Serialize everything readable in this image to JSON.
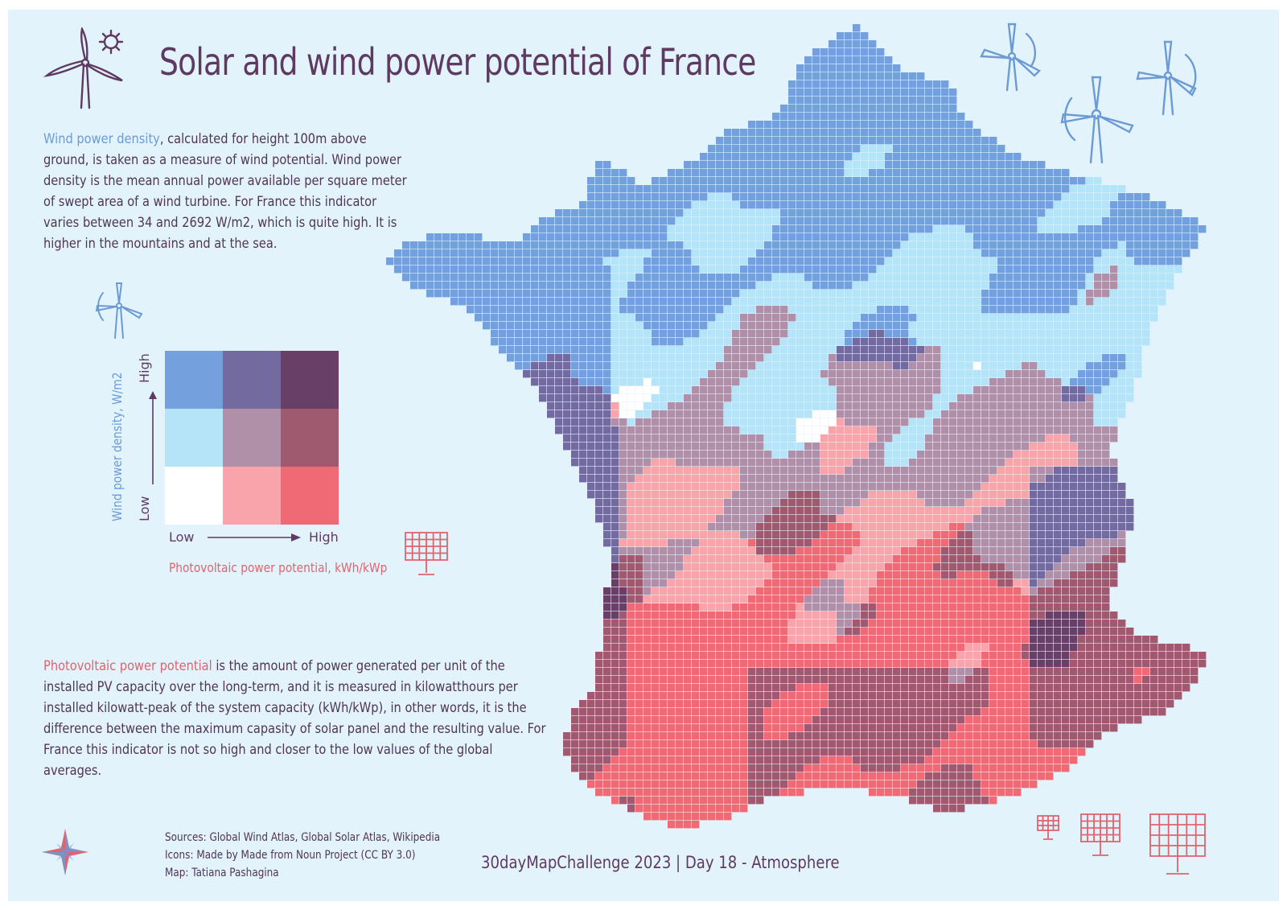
{
  "title": "Solar and wind power potential of France",
  "wind_text": {
    "highlight": "Wind power density",
    "rest": ", calculated for height 100m above ground, is taken as a measure of wind potential. Wind power density is the mean annual power available per square meter of swept area of a wind turbine. For France this indicator varies between 34 and 2692 W/m2, which is quite high. It is higher in the mountains and at the sea."
  },
  "pv_text": {
    "highlight": "Photovoltaic power potential",
    "rest": " is the amount of power generated per unit of the installed PV capacity over the long-term, and it is measured in kilowatthours per installed kilowatt-peak of the system capacity (kWh/kWp), in other words, it is the difference between the maximum capasity of solar panel and the resulting value. For France this indicator is not so high and closer to the low values of the global averages."
  },
  "legend": {
    "y_axis_label": "Wind power density, W/m2",
    "x_axis_label": "Photovoltaic power potential, kWh/kWp",
    "high": "High",
    "low": "Low",
    "grid_colors": [
      [
        "#74a1dd",
        "#736aa0",
        "#683f66"
      ],
      [
        "#b5e3f8",
        "#b090a8",
        "#a05a70"
      ],
      [
        "#ffffff",
        "#f9a3ab",
        "#ef6a74"
      ]
    ]
  },
  "sources": {
    "line1": "Sources: Global Wind Atlas, Global Solar Atlas, Wikipedia",
    "line2": "Icons: Made by Made from Noun Project (CC BY 3.0)",
    "line3": "Map: Tatiana Pashagina"
  },
  "challenge": "30dayMapChallenge 2023 | Day 18 - Atmosphere",
  "colors": {
    "background": "#e3f3fb",
    "title": "#5e3a63",
    "wind_accent": "#6a9bd6",
    "solar_accent": "#e0636f"
  },
  "icons": {
    "title_icon": "wind-turbine-sun-icon",
    "legend_wind": "wind-turbine-icon",
    "legend_solar": "solar-panel-icon",
    "compass": "compass-rose-icon"
  }
}
